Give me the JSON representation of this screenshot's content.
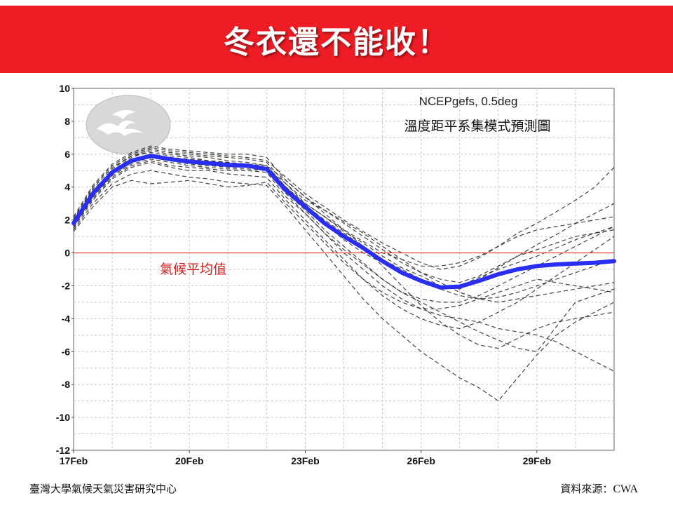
{
  "header": {
    "title": "冬衣還不能收！"
  },
  "footer": {
    "left": "臺灣大學氣候天氣災害研究中心",
    "right_prefix": "資料來源：",
    "right_source": "CWA"
  },
  "colors": {
    "banner": "#ee1c24",
    "mean_line": "#2a2ef0",
    "ensemble_line": "#222222",
    "zero_line": "#e03030",
    "label_red": "#d42020"
  },
  "chart_data": {
    "type": "line",
    "model_label": "NCEPgefs, 0.5deg",
    "title": "溫度距平系集模式預測圖",
    "zero_label": "氣候平均值",
    "logo": "cloud-logo-icon",
    "grid": true,
    "xlabel": "",
    "ylabel": "",
    "ylim": [
      -12,
      10
    ],
    "yticks": [
      10,
      8,
      6,
      4,
      2,
      0,
      -2,
      -4,
      -6,
      -8,
      -10,
      -12
    ],
    "xlim": [
      0,
      14
    ],
    "xticks": [
      {
        "x": 0,
        "label": "17Feb"
      },
      {
        "x": 3,
        "label": "20Feb"
      },
      {
        "x": 6,
        "label": "23Feb"
      },
      {
        "x": 9,
        "label": "26Feb"
      },
      {
        "x": 12,
        "label": "29Feb"
      }
    ],
    "x": [
      0,
      0.5,
      1,
      1.5,
      2,
      2.5,
      3,
      3.5,
      4,
      4.5,
      5,
      5.5,
      6,
      6.5,
      7,
      7.5,
      8,
      8.5,
      9,
      9.5,
      10,
      10.5,
      11,
      11.5,
      12,
      12.5,
      13,
      13.5,
      14
    ],
    "ensemble_mean": [
      1.8,
      3.6,
      4.9,
      5.6,
      5.9,
      5.7,
      5.55,
      5.45,
      5.35,
      5.3,
      5.1,
      3.8,
      2.8,
      1.8,
      1.0,
      0.3,
      -0.5,
      -1.2,
      -1.7,
      -2.1,
      -2.05,
      -1.7,
      -1.3,
      -1.0,
      -0.8,
      -0.7,
      -0.65,
      -0.6,
      -0.5
    ],
    "series": [
      {
        "values": [
          1.9,
          3.8,
          5.0,
          5.8,
          6.2,
          6.0,
          5.9,
          5.8,
          5.6,
          5.5,
          5.3,
          4.0,
          3.0,
          2.2,
          1.3,
          0.6,
          -0.2,
          -0.9,
          -1.4,
          -2.0,
          -2.2,
          -1.6,
          -0.9,
          -0.2,
          0.5,
          1.1,
          1.8,
          2.4,
          3.0
        ]
      },
      {
        "values": [
          1.6,
          3.3,
          4.6,
          5.3,
          5.6,
          5.3,
          5.2,
          5.1,
          5.0,
          5.0,
          4.9,
          3.4,
          2.4,
          1.2,
          0.2,
          -0.7,
          -1.6,
          -2.4,
          -3.0,
          -3.6,
          -4.2,
          -4.8,
          -5.3,
          -5.8,
          -6.0,
          -4.5,
          -3.0,
          -2.6,
          -2.2
        ]
      },
      {
        "values": [
          2.1,
          4.0,
          5.3,
          6.0,
          6.4,
          6.2,
          6.1,
          6.0,
          5.9,
          5.8,
          5.6,
          4.6,
          3.6,
          2.8,
          2.0,
          1.3,
          0.6,
          0.0,
          -0.6,
          -1.0,
          -0.8,
          -0.3,
          0.4,
          1.2,
          1.8,
          2.5,
          3.2,
          4.0,
          5.2
        ]
      },
      {
        "values": [
          1.4,
          3.0,
          4.2,
          4.8,
          5.0,
          4.8,
          4.6,
          4.5,
          4.3,
          4.2,
          4.1,
          2.8,
          1.4,
          0.0,
          -1.4,
          -2.8,
          -4.0,
          -5.0,
          -6.0,
          -6.8,
          -7.6,
          -8.2,
          -9.0,
          -7.6,
          -6.2,
          -5.0,
          -4.2,
          -3.6,
          -3.0
        ]
      },
      {
        "values": [
          1.7,
          3.5,
          4.8,
          5.5,
          5.8,
          5.6,
          5.5,
          5.4,
          5.3,
          5.2,
          5.0,
          3.9,
          2.9,
          2.0,
          1.2,
          0.4,
          -0.4,
          -1.0,
          -1.6,
          -2.2,
          -2.6,
          -2.8,
          -2.7,
          -2.4,
          -2.0,
          -1.6,
          -1.2,
          -0.8,
          -0.4
        ]
      },
      {
        "values": [
          2.0,
          3.7,
          5.1,
          5.9,
          6.1,
          5.9,
          5.8,
          5.6,
          5.5,
          5.4,
          5.2,
          4.2,
          3.2,
          2.6,
          1.9,
          1.2,
          0.4,
          -0.4,
          -1.2,
          -1.8,
          -2.4,
          -2.8,
          -3.0,
          -2.8,
          -2.6,
          -2.4,
          -2.2,
          -2.0,
          -1.8
        ]
      },
      {
        "values": [
          1.5,
          3.2,
          4.5,
          5.2,
          5.5,
          5.2,
          5.0,
          5.0,
          4.8,
          4.7,
          4.6,
          3.2,
          2.0,
          0.8,
          -0.4,
          -1.6,
          -2.6,
          -3.4,
          -4.0,
          -4.4,
          -4.6,
          -4.2,
          -3.6,
          -3.0,
          -2.2,
          -1.4,
          -0.6,
          0.2,
          1.0
        ]
      },
      {
        "values": [
          1.8,
          3.6,
          4.9,
          5.7,
          6.0,
          5.8,
          5.7,
          5.6,
          5.5,
          5.3,
          5.2,
          4.0,
          2.9,
          1.8,
          0.8,
          0.0,
          -0.6,
          -1.2,
          -1.8,
          -2.2,
          -2.0,
          -1.5,
          -1.0,
          -0.6,
          -0.2,
          0.3,
          0.8,
          1.2,
          1.6
        ]
      },
      {
        "values": [
          2.2,
          4.1,
          5.4,
          6.1,
          6.5,
          6.3,
          6.2,
          6.1,
          6.0,
          6.0,
          5.8,
          4.4,
          3.4,
          2.4,
          1.4,
          0.4,
          -0.8,
          -2.0,
          -3.2,
          -4.2,
          -5.0,
          -5.6,
          -5.8,
          -5.2,
          -4.6,
          -4.2,
          -4.0,
          -3.8,
          -3.6
        ]
      },
      {
        "values": [
          1.3,
          2.8,
          4.0,
          4.4,
          4.2,
          4.3,
          4.4,
          4.2,
          4.0,
          4.1,
          4.3,
          3.0,
          1.8,
          0.6,
          -0.6,
          -1.6,
          -2.4,
          -3.0,
          -3.4,
          -3.4,
          -3.2,
          -2.8,
          -2.4,
          -2.0,
          -1.6,
          -1.8,
          -2.0,
          -2.2,
          -2.4
        ]
      },
      {
        "values": [
          1.9,
          3.7,
          5.0,
          5.6,
          5.9,
          5.7,
          5.6,
          5.5,
          5.4,
          5.4,
          5.3,
          4.4,
          3.4,
          2.6,
          1.8,
          1.0,
          0.2,
          -0.6,
          -1.2,
          -1.6,
          -1.8,
          -1.4,
          -0.8,
          -0.2,
          0.2,
          0.6,
          1.0,
          1.2,
          1.4
        ]
      },
      {
        "values": [
          1.6,
          3.4,
          4.7,
          5.4,
          5.7,
          5.5,
          5.3,
          5.2,
          5.1,
          5.1,
          5.0,
          3.6,
          2.4,
          1.2,
          0.0,
          -1.0,
          -2.0,
          -2.8,
          -3.4,
          -3.8,
          -4.0,
          -4.2,
          -4.6,
          -4.8,
          -5.0,
          -5.4,
          -6.0,
          -6.6,
          -7.2
        ]
      },
      {
        "values": [
          2.0,
          3.9,
          5.2,
          5.9,
          6.3,
          6.1,
          6.0,
          5.9,
          5.8,
          5.7,
          5.5,
          4.2,
          3.0,
          2.2,
          1.4,
          0.7,
          0.0,
          -0.4,
          -0.8,
          -0.8,
          -0.6,
          -0.2,
          0.4,
          1.0,
          1.4,
          1.6,
          1.8,
          2.0,
          2.2
        ]
      },
      {
        "values": [
          1.7,
          3.5,
          4.8,
          5.5,
          5.8,
          5.6,
          5.4,
          5.3,
          5.2,
          5.2,
          5.0,
          3.7,
          2.6,
          1.4,
          0.4,
          -0.6,
          -1.6,
          -2.4,
          -2.8,
          -3.0,
          -3.0,
          -2.6,
          -2.0,
          -1.4,
          -0.8,
          -0.2,
          0.4,
          1.0,
          1.6
        ]
      }
    ]
  }
}
